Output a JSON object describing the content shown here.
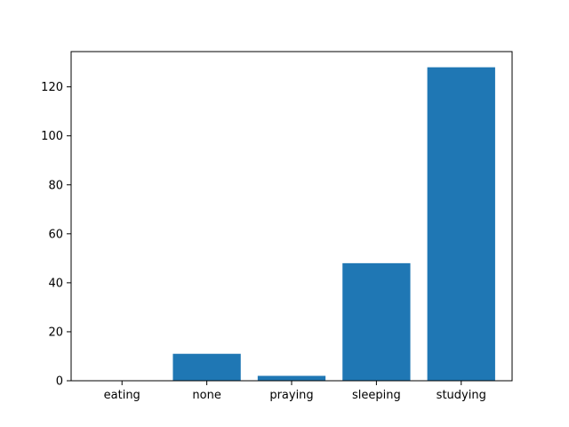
{
  "chart_data": {
    "type": "bar",
    "title": "",
    "xlabel": "",
    "ylabel": "",
    "categories": [
      "eating",
      "none",
      "praying",
      "sleeping",
      "studying"
    ],
    "values": [
      0,
      11,
      2,
      48,
      128
    ],
    "ylim": [
      0,
      134.4
    ],
    "yticks": [
      0,
      20,
      40,
      60,
      80,
      100,
      120
    ],
    "bar_color": "#1f77b4",
    "grid": false,
    "legend": "none"
  }
}
